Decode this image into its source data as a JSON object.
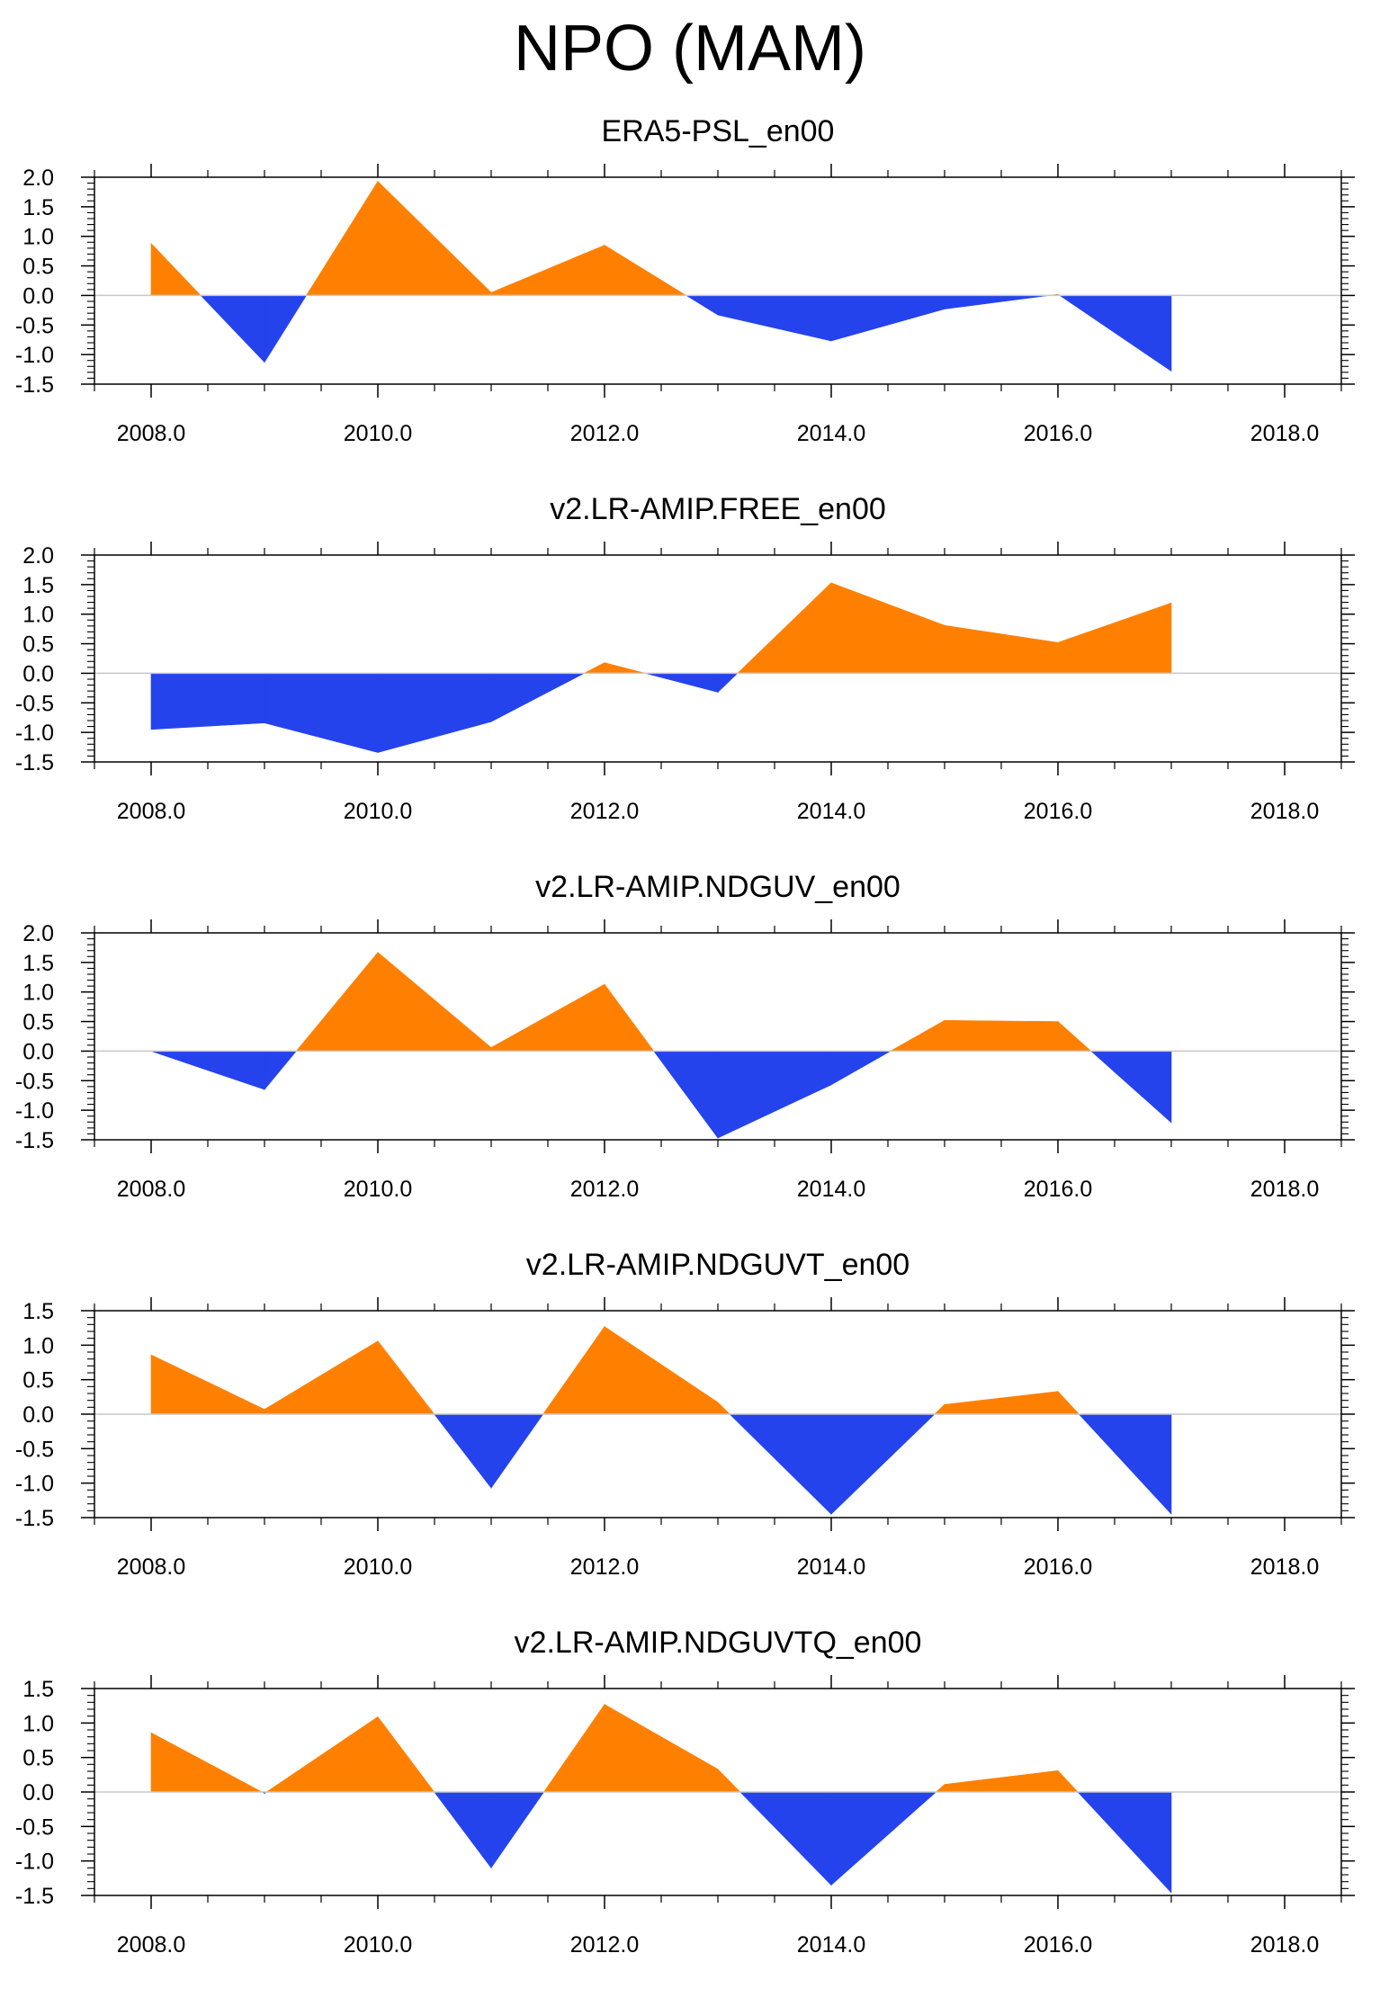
{
  "title": "NPO (MAM)",
  "colors": {
    "positive": "#ff8000",
    "negative": "#2443ed",
    "axis": "#000000",
    "zeroline": "#c8c8c8"
  },
  "chart_data": [
    {
      "type": "area",
      "title": "ERA5-PSL_en00",
      "x": [
        2008,
        2009,
        2010,
        2011,
        2012,
        2013,
        2014,
        2015,
        2016,
        2017
      ],
      "y": [
        0.88,
        -1.13,
        1.93,
        0.05,
        0.85,
        -0.33,
        -0.77,
        -0.23,
        0.02,
        -1.28
      ],
      "xlim": [
        2007.5,
        2018.5
      ],
      "ylim": [
        -1.5,
        2.0
      ],
      "xticks": [
        "2008.0",
        "2010.0",
        "2012.0",
        "2014.0",
        "2016.0",
        "2018.0"
      ],
      "xtick_values": [
        2008,
        2010,
        2012,
        2014,
        2016,
        2018
      ],
      "yticks": [
        "2.0",
        "1.5",
        "1.0",
        "0.5",
        "0.0",
        "-0.5",
        "-1.0",
        "-1.5"
      ],
      "ytick_values": [
        2.0,
        1.5,
        1.0,
        0.5,
        0.0,
        -0.5,
        -1.0,
        -1.5
      ]
    },
    {
      "type": "area",
      "title": "v2.LR-AMIP.FREE_en00",
      "x": [
        2008,
        2009,
        2010,
        2011,
        2012,
        2013,
        2014,
        2015,
        2016,
        2017
      ],
      "y": [
        -0.95,
        -0.84,
        -1.34,
        -0.82,
        0.18,
        -0.32,
        1.53,
        0.81,
        0.52,
        1.19
      ],
      "xlim": [
        2007.5,
        2018.5
      ],
      "ylim": [
        -1.5,
        2.0
      ],
      "xticks": [
        "2008.0",
        "2010.0",
        "2012.0",
        "2014.0",
        "2016.0",
        "2018.0"
      ],
      "xtick_values": [
        2008,
        2010,
        2012,
        2014,
        2016,
        2018
      ],
      "yticks": [
        "2.0",
        "1.5",
        "1.0",
        "0.5",
        "0.0",
        "-0.5",
        "-1.0",
        "-1.5"
      ],
      "ytick_values": [
        2.0,
        1.5,
        1.0,
        0.5,
        0.0,
        -0.5,
        -1.0,
        -1.5
      ]
    },
    {
      "type": "area",
      "title": "v2.LR-AMIP.NDGUV_en00",
      "x": [
        2008,
        2009,
        2010,
        2011,
        2012,
        2013,
        2014,
        2015,
        2016,
        2017
      ],
      "y": [
        0.0,
        -0.65,
        1.67,
        0.06,
        1.13,
        -1.47,
        -0.57,
        0.52,
        0.5,
        -1.21
      ],
      "xlim": [
        2007.5,
        2018.5
      ],
      "ylim": [
        -1.5,
        2.0
      ],
      "xticks": [
        "2008.0",
        "2010.0",
        "2012.0",
        "2014.0",
        "2016.0",
        "2018.0"
      ],
      "xtick_values": [
        2008,
        2010,
        2012,
        2014,
        2016,
        2018
      ],
      "yticks": [
        "2.0",
        "1.5",
        "1.0",
        "0.5",
        "0.0",
        "-0.5",
        "-1.0",
        "-1.5"
      ],
      "ytick_values": [
        2.0,
        1.5,
        1.0,
        0.5,
        0.0,
        -0.5,
        -1.0,
        -1.5
      ]
    },
    {
      "type": "area",
      "title": "v2.LR-AMIP.NDGUVT_en00",
      "x": [
        2008,
        2009,
        2010,
        2011,
        2012,
        2013,
        2014,
        2015,
        2016,
        2017
      ],
      "y": [
        0.86,
        0.07,
        1.06,
        -1.07,
        1.27,
        0.17,
        -1.45,
        0.14,
        0.33,
        -1.45
      ],
      "xlim": [
        2007.5,
        2018.5
      ],
      "ylim": [
        -1.5,
        1.5
      ],
      "xticks": [
        "2008.0",
        "2010.0",
        "2012.0",
        "2014.0",
        "2016.0",
        "2018.0"
      ],
      "xtick_values": [
        2008,
        2010,
        2012,
        2014,
        2016,
        2018
      ],
      "yticks": [
        "1.5",
        "1.0",
        "0.5",
        "0.0",
        "-0.5",
        "-1.0",
        "-1.5"
      ],
      "ytick_values": [
        1.5,
        1.0,
        0.5,
        0.0,
        -0.5,
        -1.0,
        -1.5
      ]
    },
    {
      "type": "area",
      "title": "v2.LR-AMIP.NDGUVTQ_en00",
      "x": [
        2008,
        2009,
        2010,
        2011,
        2012,
        2013,
        2014,
        2015,
        2016,
        2017
      ],
      "y": [
        0.86,
        -0.02,
        1.09,
        -1.1,
        1.27,
        0.33,
        -1.35,
        0.11,
        0.31,
        -1.46
      ],
      "xlim": [
        2007.5,
        2018.5
      ],
      "ylim": [
        -1.5,
        1.5
      ],
      "xticks": [
        "2008.0",
        "2010.0",
        "2012.0",
        "2014.0",
        "2016.0",
        "2018.0"
      ],
      "xtick_values": [
        2008,
        2010,
        2012,
        2014,
        2016,
        2018
      ],
      "yticks": [
        "1.5",
        "1.0",
        "0.5",
        "0.0",
        "-0.5",
        "-1.0",
        "-1.5"
      ],
      "ytick_values": [
        1.5,
        1.0,
        0.5,
        0.0,
        -0.5,
        -1.0,
        -1.5
      ]
    }
  ]
}
